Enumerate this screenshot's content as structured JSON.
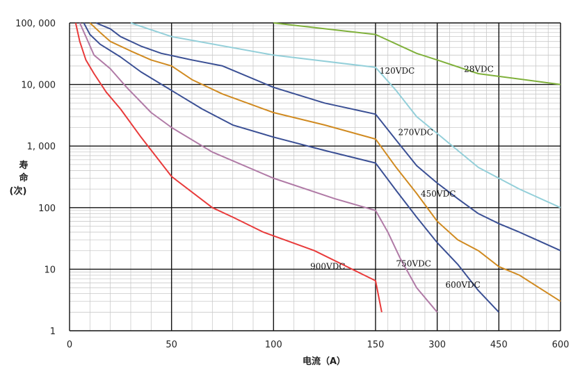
{
  "chart_data": {
    "type": "line",
    "title": "",
    "xlabel": "电流（A）",
    "ylabel_lines": [
      "寿",
      "命",
      "(次)"
    ],
    "y_scale": "log",
    "ylim": [
      1,
      100000
    ],
    "yticks": [
      {
        "value": 1,
        "label": "1"
      },
      {
        "value": 10,
        "label": "10"
      },
      {
        "value": 100,
        "label": "100"
      },
      {
        "value": 1000,
        "label": "1, 000"
      },
      {
        "value": 10000,
        "label": "10, 000"
      },
      {
        "value": 100000,
        "label": "100, 000"
      }
    ],
    "x_scale": "piecewise",
    "xticks": [
      {
        "value": 0,
        "label": "0"
      },
      {
        "value": 50,
        "label": "50"
      },
      {
        "value": 100,
        "label": "100"
      },
      {
        "value": 150,
        "label": "150"
      },
      {
        "value": 300,
        "label": "300"
      },
      {
        "value": 450,
        "label": "450"
      },
      {
        "value": 600,
        "label": "600"
      }
    ],
    "grid": true,
    "series": [
      {
        "name": "28VDC",
        "color": "#7fb03a",
        "points": [
          [
            100,
            100000
          ],
          [
            150,
            65000
          ],
          [
            250,
            32000
          ],
          [
            300,
            25000
          ],
          [
            400,
            15000
          ],
          [
            600,
            10000
          ]
        ]
      },
      {
        "name": "120VDC",
        "color": "#93cfd9",
        "points": [
          [
            30,
            100000
          ],
          [
            50,
            60000
          ],
          [
            100,
            30000
          ],
          [
            150,
            19000
          ],
          [
            200,
            8000
          ],
          [
            250,
            3000
          ],
          [
            300,
            1600
          ],
          [
            350,
            850
          ],
          [
            400,
            450
          ],
          [
            450,
            300
          ],
          [
            500,
            200
          ],
          [
            600,
            100
          ]
        ]
      },
      {
        "name": "270VDC",
        "color": "#3a4f94",
        "points": [
          [
            13,
            100000
          ],
          [
            20,
            80000
          ],
          [
            25,
            60000
          ],
          [
            35,
            42000
          ],
          [
            45,
            32000
          ],
          [
            60,
            25000
          ],
          [
            75,
            20000
          ],
          [
            100,
            9000
          ],
          [
            125,
            5000
          ],
          [
            150,
            3300
          ],
          [
            200,
            1250
          ],
          [
            250,
            480
          ],
          [
            300,
            250
          ],
          [
            350,
            140
          ],
          [
            400,
            80
          ],
          [
            450,
            55
          ],
          [
            500,
            40
          ],
          [
            600,
            20
          ]
        ]
      },
      {
        "name": "450VDC",
        "color": "#d08a20",
        "points": [
          [
            10,
            100000
          ],
          [
            15,
            70000
          ],
          [
            20,
            50000
          ],
          [
            30,
            35000
          ],
          [
            40,
            25000
          ],
          [
            50,
            20000
          ],
          [
            60,
            12000
          ],
          [
            75,
            7000
          ],
          [
            100,
            3500
          ],
          [
            125,
            2200
          ],
          [
            150,
            1300
          ],
          [
            200,
            450
          ],
          [
            250,
            170
          ],
          [
            300,
            60
          ],
          [
            350,
            30
          ],
          [
            400,
            20
          ],
          [
            450,
            11
          ],
          [
            500,
            8
          ],
          [
            600,
            3
          ]
        ]
      },
      {
        "name": "600VDC",
        "color": "#3a4f94",
        "points": [
          [
            7,
            100000
          ],
          [
            10,
            65000
          ],
          [
            15,
            45000
          ],
          [
            25,
            28000
          ],
          [
            35,
            16000
          ],
          [
            50,
            8000
          ],
          [
            65,
            4000
          ],
          [
            80,
            2200
          ],
          [
            100,
            1400
          ],
          [
            125,
            850
          ],
          [
            150,
            530
          ],
          [
            200,
            190
          ],
          [
            250,
            70
          ],
          [
            300,
            27
          ],
          [
            350,
            12
          ],
          [
            400,
            4.5
          ],
          [
            450,
            2
          ]
        ]
      },
      {
        "name": "750VDC",
        "color": "#b07aa6",
        "points": [
          [
            5,
            100000
          ],
          [
            8,
            60000
          ],
          [
            12,
            30000
          ],
          [
            20,
            18000
          ],
          [
            28,
            9000
          ],
          [
            40,
            3500
          ],
          [
            50,
            2000
          ],
          [
            70,
            800
          ],
          [
            100,
            300
          ],
          [
            130,
            140
          ],
          [
            150,
            90
          ],
          [
            180,
            40
          ],
          [
            210,
            15
          ],
          [
            250,
            5
          ],
          [
            300,
            2
          ]
        ]
      },
      {
        "name": "900VDC",
        "color": "#e83a3a",
        "points": [
          [
            3,
            100000
          ],
          [
            5,
            50000
          ],
          [
            8,
            25000
          ],
          [
            12,
            15000
          ],
          [
            18,
            7500
          ],
          [
            25,
            4000
          ],
          [
            35,
            1400
          ],
          [
            50,
            320
          ],
          [
            70,
            100
          ],
          [
            80,
            70
          ],
          [
            95,
            40
          ],
          [
            120,
            20
          ],
          [
            150,
            6.5
          ],
          [
            165,
            2
          ]
        ]
      }
    ],
    "annotations": [
      {
        "text": "28VDC",
        "x": 365,
        "y": 16000
      },
      {
        "text": "120VDC",
        "x": 160,
        "y": 15000
      },
      {
        "text": "270VDC",
        "x": 205,
        "y": 1500
      },
      {
        "text": "450VDC",
        "x": 260,
        "y": 150
      },
      {
        "text": "600VDC",
        "x": 320,
        "y": 5
      },
      {
        "text": "750VDC",
        "x": 200,
        "y": 11
      },
      {
        "text": "900VDC",
        "x": 118,
        "y": 10
      }
    ]
  }
}
